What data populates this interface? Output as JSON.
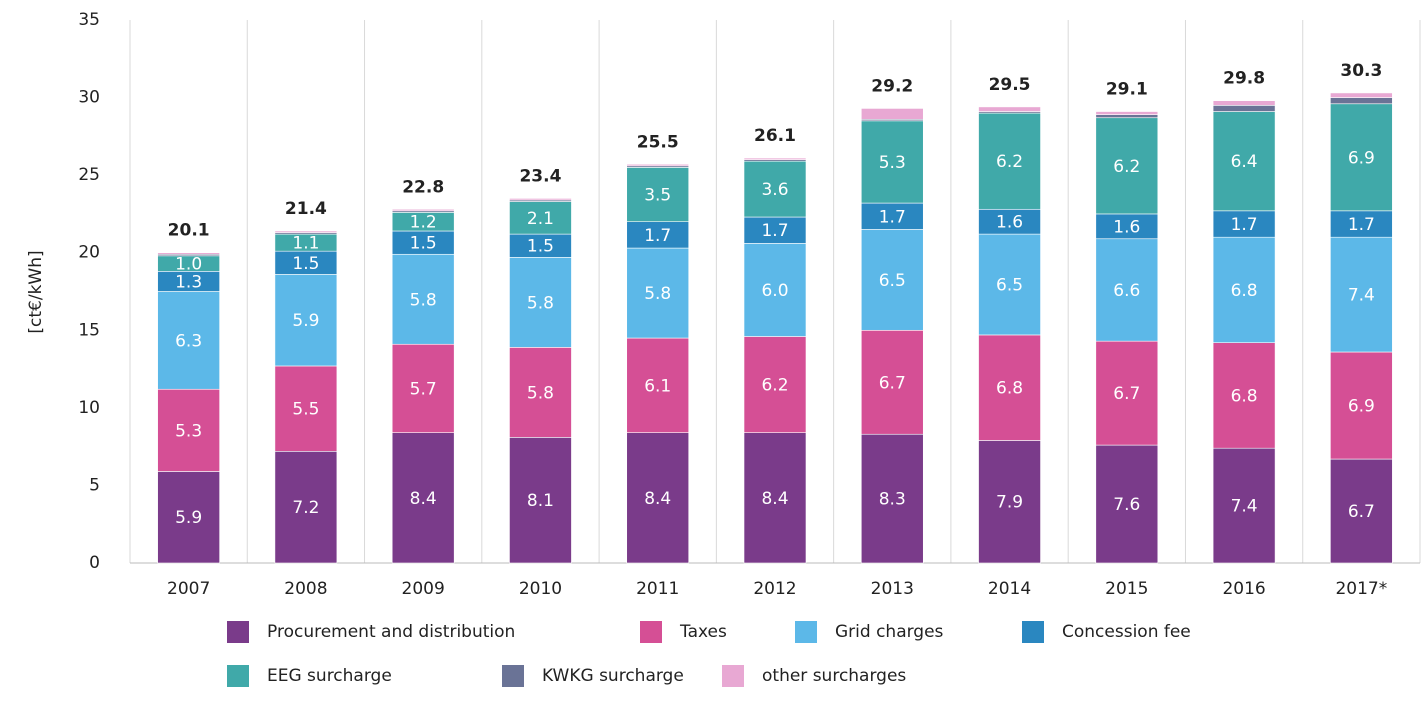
{
  "chart_data": {
    "type": "stacked_bar",
    "ylabel": "[ct€/kWh]",
    "categories": [
      "2007",
      "2008",
      "2009",
      "2010",
      "2011",
      "2012",
      "2013",
      "2014",
      "2015",
      "2016",
      "2017*"
    ],
    "ylim": [
      0,
      35
    ],
    "yticks": [
      0,
      5,
      10,
      15,
      20,
      25,
      30,
      35
    ],
    "vertical_grid": true,
    "totals": [
      20.1,
      21.4,
      22.8,
      23.4,
      25.5,
      26.1,
      29.2,
      29.5,
      29.1,
      29.8,
      30.3
    ],
    "series": [
      {
        "name": "Procurement and distribution",
        "color": "#7a3b8a",
        "values": [
          5.9,
          7.2,
          8.4,
          8.1,
          8.4,
          8.4,
          8.3,
          7.9,
          7.6,
          7.4,
          6.7
        ],
        "value_labels": [
          "5.9",
          "7.2",
          "8.4",
          "8.1",
          "8.4",
          "8.4",
          "8.3",
          "7.9",
          "7.6",
          "7.4",
          "6.7"
        ]
      },
      {
        "name": "Taxes",
        "color": "#d54f95",
        "values": [
          5.3,
          5.5,
          5.7,
          5.8,
          6.1,
          6.2,
          6.7,
          6.8,
          6.7,
          6.8,
          6.9
        ],
        "value_labels": [
          "5.3",
          "5.5",
          "5.7",
          "5.8",
          "6.1",
          "6.2",
          "6.7",
          "6.8",
          "6.7",
          "6.8",
          "6.9"
        ]
      },
      {
        "name": "Grid charges",
        "color": "#5cb8e8",
        "values": [
          6.3,
          5.9,
          5.8,
          5.8,
          5.8,
          6.0,
          6.5,
          6.5,
          6.6,
          6.8,
          7.4
        ],
        "value_labels": [
          "6.3",
          "5.9",
          "5.8",
          "5.8",
          "5.8",
          "6.0",
          "6.5",
          "6.5",
          "6.6",
          "6.8",
          "7.4"
        ]
      },
      {
        "name": "Concession fee",
        "color": "#2a87c0",
        "values": [
          1.3,
          1.5,
          1.5,
          1.5,
          1.7,
          1.7,
          1.7,
          1.6,
          1.6,
          1.7,
          1.7
        ],
        "value_labels": [
          "1.3",
          "1.5",
          "1.5",
          "1.5",
          "1.7",
          "1.7",
          "1.7",
          "1.6",
          "1.6",
          "1.7",
          "1.7"
        ]
      },
      {
        "name": "EEG surcharge",
        "color": "#40a9a9",
        "values": [
          1.0,
          1.1,
          1.2,
          2.1,
          3.5,
          3.6,
          5.3,
          6.2,
          6.2,
          6.4,
          6.9
        ],
        "value_labels": [
          "1.0",
          "1.1",
          "1.2",
          "2.1",
          "3.5",
          "3.6",
          "5.3",
          "6.2",
          "6.2",
          "6.4",
          "6.9"
        ]
      },
      {
        "name": "KWKG surcharge",
        "color": "#6a7396",
        "values": [
          0.1,
          0.1,
          0.1,
          0.1,
          0.1,
          0.1,
          0.1,
          0.1,
          0.2,
          0.4,
          0.4
        ]
      },
      {
        "name": "other surcharges",
        "color": "#e8a8d3",
        "values": [
          0.1,
          0.1,
          0.1,
          0.1,
          0.1,
          0.1,
          0.7,
          0.3,
          0.2,
          0.3,
          0.3
        ]
      }
    ]
  }
}
